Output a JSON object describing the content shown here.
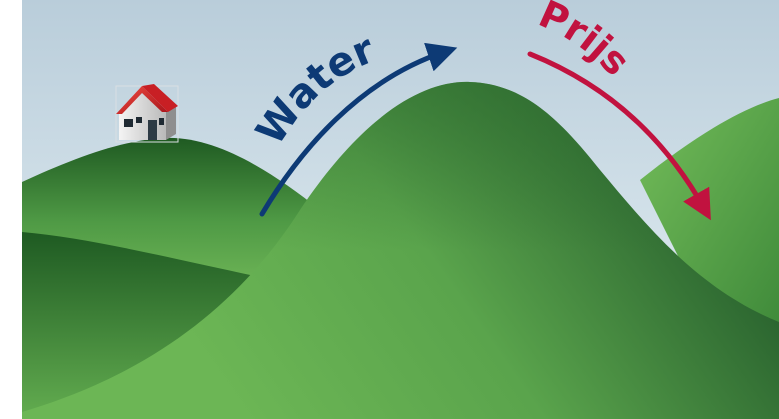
{
  "labels": {
    "water": "Water",
    "price": "Prijs"
  },
  "colors": {
    "water_arrow": "#0d3a75",
    "price_arrow": "#c1123f",
    "sky_top": "#b9cdda",
    "sky_bottom": "#e6f1f6",
    "hill_light": "#6db756",
    "hill_dark": "#255e27",
    "roof": "#d91f26"
  },
  "icons": {
    "house": "house-icon"
  }
}
